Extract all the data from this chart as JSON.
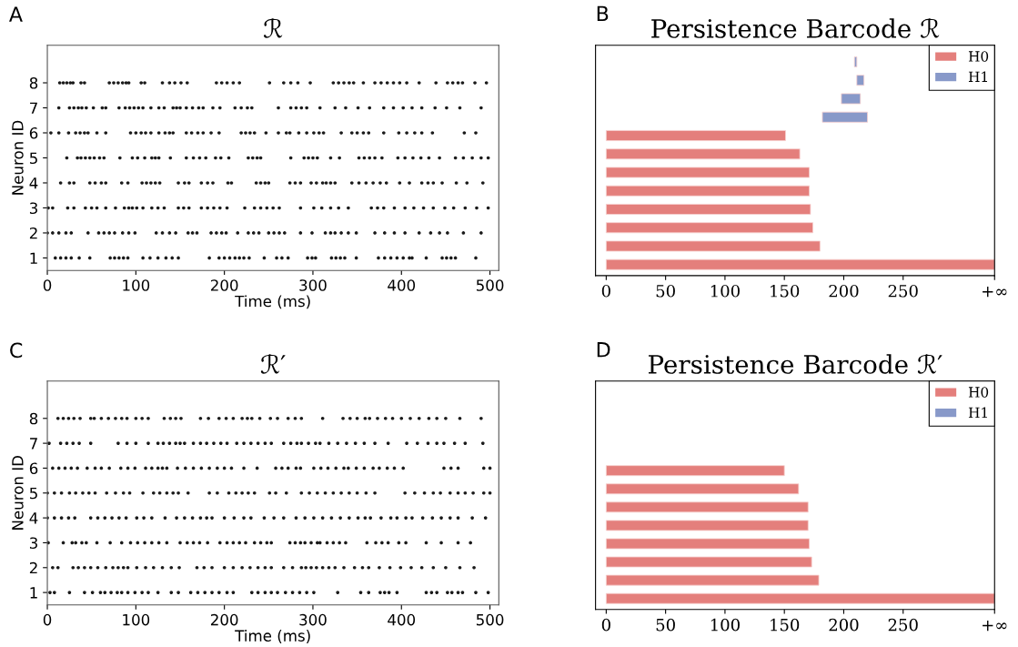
{
  "chart_data": [
    {
      "type": "scatter",
      "title": "ℛ",
      "xlabel": "Time (ms)",
      "ylabel": "Neuron ID",
      "annotations": [
        "A"
      ],
      "xlim": [
        0,
        510
      ],
      "xticks": [
        0,
        100,
        200,
        300,
        400,
        500
      ],
      "ylim": [
        0.5,
        9.5
      ],
      "yticks": [
        1,
        2,
        3,
        4,
        5,
        6,
        7,
        8
      ],
      "marker": "circle",
      "series": [
        {
          "color": "#1a1a1a",
          "x": [
            9,
            15,
            21,
            27,
            36,
            48,
            71,
            76,
            81,
            86,
            91,
            108,
            116,
            125,
            134,
            141,
            148,
            183,
            194,
            200,
            206,
            212,
            217,
            222,
            228,
            245,
            259,
            265,
            272,
            294,
            299,
            303,
            321,
            326,
            331,
            336,
            349,
            374,
            381,
            388,
            395,
            402,
            409,
            412,
            428,
            446,
            451,
            456,
            461,
            484
          ],
          "values": [
            1,
            1,
            1,
            1,
            1,
            1,
            1,
            1,
            1,
            1,
            1,
            1,
            1,
            1,
            1,
            1,
            1,
            1,
            1,
            1,
            1,
            1,
            1,
            1,
            1,
            1,
            1,
            1,
            1,
            1,
            1,
            1,
            1,
            1,
            1,
            1,
            1,
            1,
            1,
            1,
            1,
            1,
            1,
            1,
            1,
            1,
            1,
            1,
            1,
            1
          ]
        },
        {
          "color": "#1a1a1a",
          "x": [
            0,
            6,
            13,
            21,
            27,
            46,
            58,
            64,
            70,
            76,
            85,
            92,
            99,
            123,
            130,
            138,
            145,
            159,
            164,
            169,
            185,
            191,
            197,
            202,
            215,
            227,
            233,
            239,
            250,
            256,
            262,
            268,
            286,
            299,
            314,
            320,
            325,
            332,
            340,
            349,
            370,
            381,
            392,
            404,
            420,
            433,
            443,
            452,
            470,
            490
          ],
          "values": [
            2,
            2,
            2,
            2,
            2,
            2,
            2,
            2,
            2,
            2,
            2,
            2,
            2,
            2,
            2,
            2,
            2,
            2,
            2,
            2,
            2,
            2,
            2,
            2,
            2,
            2,
            2,
            2,
            2,
            2,
            2,
            2,
            2,
            2,
            2,
            2,
            2,
            2,
            2,
            2,
            2,
            2,
            2,
            2,
            2,
            2,
            2,
            2,
            2,
            2
          ]
        },
        {
          "color": "#1a1a1a",
          "x": [
            1,
            6,
            23,
            30,
            43,
            50,
            56,
            66,
            77,
            87,
            92,
            96,
            101,
            108,
            118,
            125,
            132,
            148,
            154,
            160,
            174,
            181,
            188,
            195,
            203,
            223,
            234,
            241,
            248,
            255,
            262,
            286,
            301,
            310,
            320,
            329,
            340,
            366,
            373,
            380,
            392,
            404,
            414,
            425,
            436,
            449,
            459,
            472,
            485,
            498
          ],
          "values": [
            3,
            3,
            3,
            3,
            3,
            3,
            3,
            3,
            3,
            3,
            3,
            3,
            3,
            3,
            3,
            3,
            3,
            3,
            3,
            3,
            3,
            3,
            3,
            3,
            3,
            3,
            3,
            3,
            3,
            3,
            3,
            3,
            3,
            3,
            3,
            3,
            3,
            3,
            3,
            3,
            3,
            3,
            3,
            3,
            3,
            3,
            3,
            3,
            3,
            3
          ]
        },
        {
          "color": "#1a1a1a",
          "x": [
            15,
            25,
            30,
            48,
            54,
            61,
            66,
            84,
            91,
            107,
            112,
            117,
            122,
            127,
            148,
            155,
            160,
            174,
            181,
            187,
            204,
            208,
            236,
            241,
            246,
            250,
            274,
            280,
            286,
            298,
            304,
            311,
            315,
            320,
            325,
            344,
            352,
            360,
            368,
            376,
            383,
            398,
            409,
            423,
            430,
            436,
            446,
            462,
            474,
            492
          ],
          "values": [
            4,
            4,
            4,
            4,
            4,
            4,
            4,
            4,
            4,
            4,
            4,
            4,
            4,
            4,
            4,
            4,
            4,
            4,
            4,
            4,
            4,
            4,
            4,
            4,
            4,
            4,
            4,
            4,
            4,
            4,
            4,
            4,
            4,
            4,
            4,
            4,
            4,
            4,
            4,
            4,
            4,
            4,
            4,
            4,
            4,
            4,
            4,
            4,
            4,
            4
          ]
        },
        {
          "color": "#1a1a1a",
          "x": [
            22,
            34,
            38,
            43,
            48,
            53,
            59,
            64,
            82,
            96,
            102,
            110,
            118,
            122,
            126,
            139,
            157,
            165,
            172,
            179,
            190,
            196,
            205,
            227,
            232,
            237,
            241,
            275,
            290,
            295,
            300,
            305,
            320,
            330,
            352,
            358,
            364,
            370,
            378,
            396,
            404,
            413,
            422,
            431,
            443,
            461,
            470,
            480,
            490,
            498
          ],
          "values": [
            5,
            5,
            5,
            5,
            5,
            5,
            5,
            5,
            5,
            5,
            5,
            5,
            5,
            5,
            5,
            5,
            5,
            5,
            5,
            5,
            5,
            5,
            5,
            5,
            5,
            5,
            5,
            5,
            5,
            5,
            5,
            5,
            5,
            5,
            5,
            5,
            5,
            5,
            5,
            5,
            5,
            5,
            5,
            5,
            5,
            5,
            5,
            5,
            5,
            5
          ]
        },
        {
          "color": "#1a1a1a",
          "x": [
            4,
            13,
            24,
            32,
            37,
            42,
            46,
            56,
            66,
            94,
            100,
            106,
            111,
            117,
            126,
            133,
            138,
            142,
            157,
            163,
            170,
            176,
            185,
            194,
            219,
            224,
            229,
            234,
            247,
            261,
            270,
            274,
            284,
            293,
            301,
            307,
            312,
            332,
            344,
            350,
            357,
            363,
            380,
            397,
            406,
            415,
            423,
            435,
            471,
            484
          ],
          "values": [
            6,
            6,
            6,
            6,
            6,
            6,
            6,
            6,
            6,
            6,
            6,
            6,
            6,
            6,
            6,
            6,
            6,
            6,
            6,
            6,
            6,
            6,
            6,
            6,
            6,
            6,
            6,
            6,
            6,
            6,
            6,
            6,
            6,
            6,
            6,
            6,
            6,
            6,
            6,
            6,
            6,
            6,
            6,
            6,
            6,
            6,
            6,
            6,
            6,
            6
          ]
        },
        {
          "color": "#1a1a1a",
          "x": [
            13,
            25,
            30,
            35,
            39,
            44,
            52,
            62,
            66,
            81,
            88,
            93,
            98,
            103,
            108,
            117,
            126,
            132,
            142,
            146,
            150,
            157,
            164,
            171,
            176,
            187,
            195,
            212,
            219,
            226,
            231,
            261,
            275,
            281,
            287,
            293,
            308,
            325,
            337,
            351,
            364,
            380,
            391,
            402,
            412,
            423,
            438,
            451,
            466,
            490
          ],
          "values": [
            7,
            7,
            7,
            7,
            7,
            7,
            7,
            7,
            7,
            7,
            7,
            7,
            7,
            7,
            7,
            7,
            7,
            7,
            7,
            7,
            7,
            7,
            7,
            7,
            7,
            7,
            7,
            7,
            7,
            7,
            7,
            7,
            7,
            7,
            7,
            7,
            7,
            7,
            7,
            7,
            7,
            7,
            7,
            7,
            7,
            7,
            7,
            7,
            7,
            7
          ]
        },
        {
          "color": "#1a1a1a",
          "x": [
            14,
            18,
            22,
            26,
            29,
            38,
            42,
            70,
            75,
            80,
            85,
            89,
            92,
            106,
            110,
            130,
            138,
            144,
            151,
            158,
            191,
            197,
            203,
            210,
            217,
            251,
            267,
            275,
            283,
            297,
            323,
            329,
            335,
            341,
            346,
            357,
            370,
            377,
            384,
            391,
            398,
            406,
            420,
            439,
            452,
            458,
            464,
            469,
            483,
            496
          ],
          "values": [
            8,
            8,
            8,
            8,
            8,
            8,
            8,
            8,
            8,
            8,
            8,
            8,
            8,
            8,
            8,
            8,
            8,
            8,
            8,
            8,
            8,
            8,
            8,
            8,
            8,
            8,
            8,
            8,
            8,
            8,
            8,
            8,
            8,
            8,
            8,
            8,
            8,
            8,
            8,
            8,
            8,
            8,
            8,
            8,
            8,
            8,
            8,
            8,
            8,
            8
          ]
        }
      ]
    },
    {
      "type": "bar",
      "orientation": "horizontal",
      "title": "Persistence Barcode ℛ",
      "annotations": [
        "B"
      ],
      "categories": [
        null,
        null,
        null,
        null,
        null,
        null,
        null,
        null,
        null,
        null,
        null,
        null
      ],
      "xlim": [
        -9,
        327
      ],
      "xticks": [
        0,
        50,
        100,
        150,
        200,
        250,
        {
          "value": 327,
          "label": "+∞"
        }
      ],
      "tick_labels": "x",
      "legend": "top right",
      "series": [
        {
          "name": "H0",
          "color": "#e47f7c",
          "base": [
            null,
            null,
            null,
            null,
            0,
            0,
            0,
            0,
            0,
            0,
            0,
            0
          ],
          "values": [
            null,
            null,
            null,
            null,
            151,
            163,
            171,
            171,
            172,
            174,
            180,
            327
          ]
        },
        {
          "name": "H1",
          "color": "#8899c9",
          "base": [
            209,
            211,
            198,
            182,
            null,
            null,
            null,
            null,
            null,
            null,
            null,
            null
          ],
          "values": [
            2,
            6,
            16,
            38,
            null,
            null,
            null,
            null,
            null,
            null,
            null,
            null
          ]
        }
      ]
    },
    {
      "type": "scatter",
      "title": "ℛ′",
      "xlabel": "Time (ms)",
      "ylabel": "Neuron ID",
      "annotations": [
        "C"
      ],
      "xlim": [
        0,
        510
      ],
      "xticks": [
        0,
        100,
        200,
        300,
        400,
        500
      ],
      "ylim": [
        0.5,
        9.5
      ],
      "yticks": [
        1,
        2,
        3,
        4,
        5,
        6,
        7,
        8
      ],
      "marker": "circle",
      "series": [
        {
          "color": "#1a1a1a",
          "x": [
            3,
            8,
            25,
            42,
            51,
            60,
            65,
            72,
            79,
            84,
            91,
            99,
            107,
            114,
            125,
            140,
            148,
            162,
            170,
            178,
            186,
            194,
            203,
            210,
            231,
            238,
            246,
            253,
            260,
            269,
            277,
            285,
            293,
            301,
            328,
            354,
            363,
            376,
            381,
            386,
            395,
            428,
            434,
            440,
            452,
            457,
            464,
            469,
            484,
            498
          ],
          "values": [
            1,
            1,
            1,
            1,
            1,
            1,
            1,
            1,
            1,
            1,
            1,
            1,
            1,
            1,
            1,
            1,
            1,
            1,
            1,
            1,
            1,
            1,
            1,
            1,
            1,
            1,
            1,
            1,
            1,
            1,
            1,
            1,
            1,
            1,
            1,
            1,
            1,
            1,
            1,
            1,
            1,
            1,
            1,
            1,
            1,
            1,
            1,
            1,
            1,
            1
          ]
        },
        {
          "color": "#1a1a1a",
          "x": [
            6,
            12,
            29,
            35,
            42,
            49,
            57,
            66,
            74,
            80,
            86,
            91,
            101,
            111,
            120,
            130,
            140,
            149,
            169,
            177,
            186,
            200,
            210,
            220,
            229,
            238,
            246,
            253,
            267,
            277,
            287,
            292,
            298,
            304,
            311,
            318,
            325,
            335,
            347,
            356,
            363,
            375,
            387,
            399,
            411,
            423,
            436,
            450,
            466,
            482
          ],
          "values": [
            2,
            2,
            2,
            2,
            2,
            2,
            2,
            2,
            2,
            2,
            2,
            2,
            2,
            2,
            2,
            2,
            2,
            2,
            2,
            2,
            2,
            2,
            2,
            2,
            2,
            2,
            2,
            2,
            2,
            2,
            2,
            2,
            2,
            2,
            2,
            2,
            2,
            2,
            2,
            2,
            2,
            2,
            2,
            2,
            2,
            2,
            2,
            2,
            2,
            2
          ]
        },
        {
          "color": "#1a1a1a",
          "x": [
            1,
            18,
            28,
            32,
            39,
            44,
            56,
            71,
            84,
            94,
            102,
            110,
            118,
            126,
            135,
            150,
            158,
            165,
            172,
            181,
            195,
            203,
            210,
            217,
            224,
            234,
            241,
            248,
            253,
            274,
            280,
            286,
            291,
            298,
            305,
            308,
            316,
            323,
            330,
            337,
            361,
            371,
            378,
            385,
            397,
            405,
            428,
            445,
            464,
            478
          ],
          "values": [
            3,
            3,
            3,
            3,
            3,
            3,
            3,
            3,
            3,
            3,
            3,
            3,
            3,
            3,
            3,
            3,
            3,
            3,
            3,
            3,
            3,
            3,
            3,
            3,
            3,
            3,
            3,
            3,
            3,
            3,
            3,
            3,
            3,
            3,
            3,
            3,
            3,
            3,
            3,
            3,
            3,
            3,
            3,
            3,
            3,
            3,
            3,
            3,
            3,
            3
          ]
        },
        {
          "color": "#1a1a1a",
          "x": [
            0,
            8,
            16,
            24,
            31,
            49,
            57,
            65,
            73,
            81,
            89,
            101,
            109,
            118,
            133,
            146,
            155,
            164,
            173,
            180,
            186,
            200,
            211,
            222,
            230,
            245,
            256,
            267,
            281,
            291,
            301,
            311,
            321,
            331,
            341,
            351,
            359,
            365,
            377,
            388,
            395,
            405,
            412,
            424,
            435,
            445,
            455,
            464,
            480,
            495
          ],
          "values": [
            4,
            4,
            4,
            4,
            4,
            4,
            4,
            4,
            4,
            4,
            4,
            4,
            4,
            4,
            4,
            4,
            4,
            4,
            4,
            4,
            4,
            4,
            4,
            4,
            4,
            4,
            4,
            4,
            4,
            4,
            4,
            4,
            4,
            4,
            4,
            4,
            4,
            4,
            4,
            4,
            4,
            4,
            4,
            4,
            4,
            4,
            4,
            4,
            4,
            4
          ]
        },
        {
          "color": "#1a1a1a",
          "x": [
            0,
            8,
            16,
            25,
            32,
            40,
            47,
            54,
            67,
            77,
            86,
            93,
            108,
            120,
            127,
            135,
            142,
            148,
            159,
            183,
            192,
            205,
            213,
            220,
            227,
            234,
            251,
            258,
            270,
            287,
            296,
            305,
            314,
            323,
            332,
            341,
            350,
            360,
            370,
            404,
            415,
            426,
            436,
            444,
            455,
            464,
            472,
            481,
            493,
            500
          ],
          "values": [
            5,
            5,
            5,
            5,
            5,
            5,
            5,
            5,
            5,
            5,
            5,
            5,
            5,
            5,
            5,
            5,
            5,
            5,
            5,
            5,
            5,
            5,
            5,
            5,
            5,
            5,
            5,
            5,
            5,
            5,
            5,
            5,
            5,
            5,
            5,
            5,
            5,
            5,
            5,
            5,
            5,
            5,
            5,
            5,
            5,
            5,
            5,
            5,
            5,
            5
          ]
        },
        {
          "color": "#1a1a1a",
          "x": [
            6,
            13,
            20,
            27,
            34,
            45,
            54,
            61,
            70,
            83,
            91,
            99,
            111,
            118,
            125,
            130,
            135,
            147,
            156,
            165,
            174,
            183,
            192,
            200,
            208,
            222,
            237,
            258,
            265,
            272,
            281,
            286,
            301,
            309,
            317,
            326,
            335,
            340,
            349,
            358,
            368,
            375,
            384,
            392,
            402,
            448,
            456,
            464,
            493,
            500
          ],
          "values": [
            6,
            6,
            6,
            6,
            6,
            6,
            6,
            6,
            6,
            6,
            6,
            6,
            6,
            6,
            6,
            6,
            6,
            6,
            6,
            6,
            6,
            6,
            6,
            6,
            6,
            6,
            6,
            6,
            6,
            6,
            6,
            6,
            6,
            6,
            6,
            6,
            6,
            6,
            6,
            6,
            6,
            6,
            6,
            6,
            6,
            6,
            6,
            6,
            6,
            6
          ]
        },
        {
          "color": "#1a1a1a",
          "x": [
            2,
            15,
            22,
            29,
            36,
            49,
            80,
            90,
            100,
            114,
            125,
            131,
            138,
            145,
            150,
            155,
            165,
            173,
            180,
            188,
            196,
            203,
            214,
            222,
            230,
            238,
            246,
            253,
            267,
            275,
            282,
            287,
            295,
            303,
            308,
            318,
            328,
            338,
            348,
            358,
            370,
            385,
            406,
            418,
            430,
            440,
            448,
            460,
            472,
            492
          ],
          "values": [
            7,
            7,
            7,
            7,
            7,
            7,
            7,
            7,
            7,
            7,
            7,
            7,
            7,
            7,
            7,
            7,
            7,
            7,
            7,
            7,
            7,
            7,
            7,
            7,
            7,
            7,
            7,
            7,
            7,
            7,
            7,
            7,
            7,
            7,
            7,
            7,
            7,
            7,
            7,
            7,
            7,
            7,
            7,
            7,
            7,
            7,
            7,
            7,
            7,
            7
          ]
        },
        {
          "color": "#1a1a1a",
          "x": [
            12,
            18,
            24,
            30,
            37,
            49,
            53,
            61,
            69,
            77,
            84,
            90,
            100,
            107,
            114,
            132,
            139,
            145,
            151,
            173,
            182,
            194,
            202,
            210,
            220,
            226,
            231,
            240,
            252,
            260,
            272,
            280,
            287,
            311,
            334,
            342,
            350,
            359,
            364,
            373,
            382,
            390,
            400,
            410,
            420,
            431,
            440,
            450,
            466,
            490
          ],
          "values": [
            8,
            8,
            8,
            8,
            8,
            8,
            8,
            8,
            8,
            8,
            8,
            8,
            8,
            8,
            8,
            8,
            8,
            8,
            8,
            8,
            8,
            8,
            8,
            8,
            8,
            8,
            8,
            8,
            8,
            8,
            8,
            8,
            8,
            8,
            8,
            8,
            8,
            8,
            8,
            8,
            8,
            8,
            8,
            8,
            8,
            8,
            8,
            8,
            8,
            8
          ]
        }
      ]
    },
    {
      "type": "bar",
      "orientation": "horizontal",
      "title": "Persistence Barcode ℛ′",
      "annotations": [
        "D"
      ],
      "categories": [
        null,
        null,
        null,
        null,
        null,
        null,
        null,
        null,
        null,
        null,
        null,
        null
      ],
      "xlim": [
        -9,
        327
      ],
      "xticks": [
        0,
        50,
        100,
        150,
        200,
        250,
        {
          "value": 327,
          "label": "+∞"
        }
      ],
      "tick_labels": "x",
      "legend": "top right",
      "series": [
        {
          "name": "H0",
          "color": "#e47f7c",
          "base": [
            null,
            null,
            null,
            null,
            0,
            0,
            0,
            0,
            0,
            0,
            0,
            0
          ],
          "values": [
            null,
            null,
            null,
            null,
            150,
            162,
            170,
            170,
            171,
            173,
            179,
            327
          ]
        },
        {
          "name": "H1",
          "color": "#8899c9",
          "base": [
            null,
            null,
            null,
            null,
            null,
            null,
            null,
            null,
            null,
            null,
            null,
            null
          ],
          "values": [
            null,
            null,
            null,
            null,
            null,
            null,
            null,
            null,
            null,
            null,
            null,
            null
          ]
        }
      ]
    }
  ]
}
